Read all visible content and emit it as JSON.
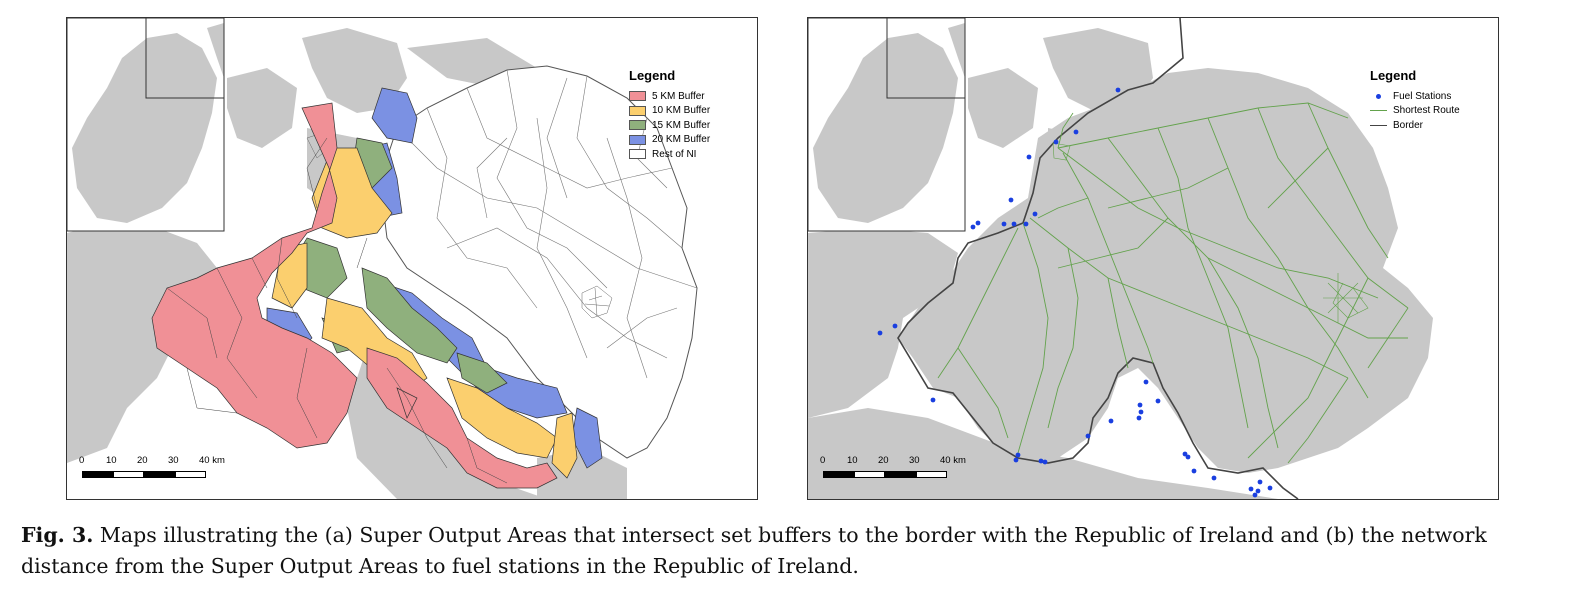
{
  "panel_a": {
    "legend": {
      "title": "Legend",
      "items": [
        {
          "label": "5 KM Buffer",
          "color": "#f09096"
        },
        {
          "label": "10 KM Buffer",
          "color": "#fbcf6e"
        },
        {
          "label": "15 KM Buffer",
          "color": "#8fb07d"
        },
        {
          "label": "20 KM Buffer",
          "color": "#7b91e3"
        },
        {
          "label": "Rest of NI",
          "color": "#ffffff"
        }
      ]
    },
    "scale_bar": {
      "labels": [
        "0",
        "10",
        "20",
        "30",
        "40 km"
      ]
    }
  },
  "panel_b": {
    "legend": {
      "title": "Legend",
      "items": [
        {
          "label": "Fuel Stations",
          "symbol": "point",
          "color": "#1a3fe0"
        },
        {
          "label": "Shortest Route",
          "symbol": "line",
          "color": "#63a24c"
        },
        {
          "label": "Border",
          "symbol": "line",
          "color": "#444444"
        }
      ]
    },
    "scale_bar": {
      "labels": [
        "0",
        "10",
        "20",
        "30",
        "40 km"
      ]
    }
  },
  "caption": {
    "label": "Fig. 3.",
    "text": " Maps illustrating the (a) Super Output Areas that intersect set buffers to the border with the Republic of Ireland and (b) the network distance from the Super Output Areas to fuel stations in the Republic of Ireland."
  },
  "colors": {
    "land_grey": "#c8c8c8",
    "sea": "#ffffff",
    "border_line": "#444444"
  }
}
